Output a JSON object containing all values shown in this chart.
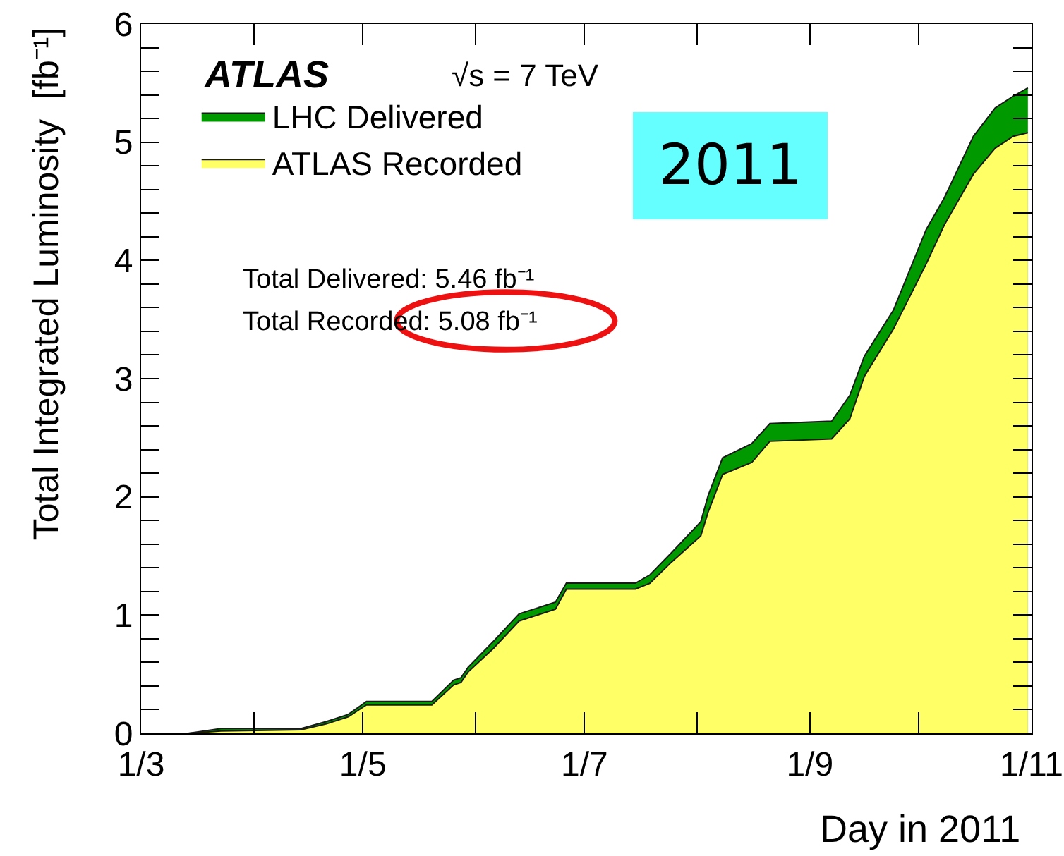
{
  "chart_data": {
    "type": "area",
    "xlabel": "Day in 2011",
    "ylabel": "Total Integrated Luminosity  [fb⁻¹]",
    "annotations": [
      "ATLAS",
      "√s = 7 TeV",
      "Total Delivered: 5.46 fb⁻¹",
      "Total Recorded: 5.08 fb⁻¹",
      "2011"
    ],
    "x": [
      "2011-03-01",
      "2011-03-14",
      "2011-03-23",
      "2011-04-14",
      "2011-04-21",
      "2011-04-27",
      "2011-05-02",
      "2011-05-20",
      "2011-05-26",
      "2011-05-28",
      "2011-05-30",
      "2011-06-06",
      "2011-06-13",
      "2011-06-23",
      "2011-06-26",
      "2011-07-15",
      "2011-07-19",
      "2011-07-25",
      "2011-08-02",
      "2011-08-04",
      "2011-08-08",
      "2011-08-16",
      "2011-08-21",
      "2011-09-07",
      "2011-09-12",
      "2011-09-16",
      "2011-09-24",
      "2011-10-03",
      "2011-10-08",
      "2011-10-16",
      "2011-10-22",
      "2011-10-27",
      "2011-10-31"
    ],
    "series": [
      {
        "name": "LHC Delivered",
        "color": "#009900",
        "values": [
          0,
          0,
          0.04,
          0.04,
          0.1,
          0.16,
          0.27,
          0.27,
          0.45,
          0.47,
          0.56,
          0.78,
          1.01,
          1.11,
          1.27,
          1.27,
          1.34,
          1.53,
          1.79,
          2.01,
          2.33,
          2.45,
          2.62,
          2.64,
          2.86,
          3.19,
          3.58,
          4.26,
          4.53,
          5.05,
          5.29,
          5.39,
          5.46
        ]
      },
      {
        "name": "ATLAS Recorded",
        "color": "#ffff66",
        "values": [
          0,
          0,
          0.02,
          0.03,
          0.08,
          0.14,
          0.24,
          0.24,
          0.41,
          0.43,
          0.52,
          0.72,
          0.95,
          1.05,
          1.22,
          1.22,
          1.27,
          1.45,
          1.67,
          1.87,
          2.19,
          2.29,
          2.47,
          2.49,
          2.66,
          3.02,
          3.42,
          3.97,
          4.3,
          4.73,
          4.95,
          5.05,
          5.08
        ]
      }
    ],
    "xlim": [
      "2011-03-01",
      "2011-11-01"
    ],
    "xticks": [
      {
        "value": "2011-03-01",
        "label": "1/3"
      },
      {
        "value": "2011-04-01",
        "label": null
      },
      {
        "value": "2011-05-01",
        "label": "1/5"
      },
      {
        "value": "2011-06-01",
        "label": null
      },
      {
        "value": "2011-07-01",
        "label": "1/7"
      },
      {
        "value": "2011-08-01",
        "label": null
      },
      {
        "value": "2011-09-01",
        "label": "1/9"
      },
      {
        "value": "2011-10-01",
        "label": null
      },
      {
        "value": "2011-11-01",
        "label": "1/11"
      }
    ],
    "ylim": [
      0,
      6
    ],
    "yticks": [
      0,
      {
        "value": 0.2,
        "label": null
      },
      {
        "value": 0.4,
        "label": null
      },
      {
        "value": 0.6,
        "label": null
      },
      {
        "value": 0.8,
        "label": null
      },
      1,
      {
        "value": 1.2,
        "label": null
      },
      {
        "value": 1.4,
        "label": null
      },
      {
        "value": 1.6,
        "label": null
      },
      {
        "value": 1.8,
        "label": null
      },
      2,
      {
        "value": 2.2,
        "label": null
      },
      {
        "value": 2.4,
        "label": null
      },
      {
        "value": 2.6,
        "label": null
      },
      {
        "value": 2.8,
        "label": null
      },
      3,
      {
        "value": 3.2,
        "label": null
      },
      {
        "value": 3.4,
        "label": null
      },
      {
        "value": 3.6,
        "label": null
      },
      {
        "value": 3.8,
        "label": null
      },
      4,
      {
        "value": 4.2,
        "label": null
      },
      {
        "value": 4.4,
        "label": null
      },
      {
        "value": 4.6,
        "label": null
      },
      {
        "value": 4.8,
        "label": null
      },
      5,
      {
        "value": 5.2,
        "label": null
      },
      {
        "value": 5.4,
        "label": null
      },
      {
        "value": 5.6,
        "label": null
      },
      {
        "value": 5.8,
        "label": null
      },
      6
    ],
    "legend": "top left"
  }
}
